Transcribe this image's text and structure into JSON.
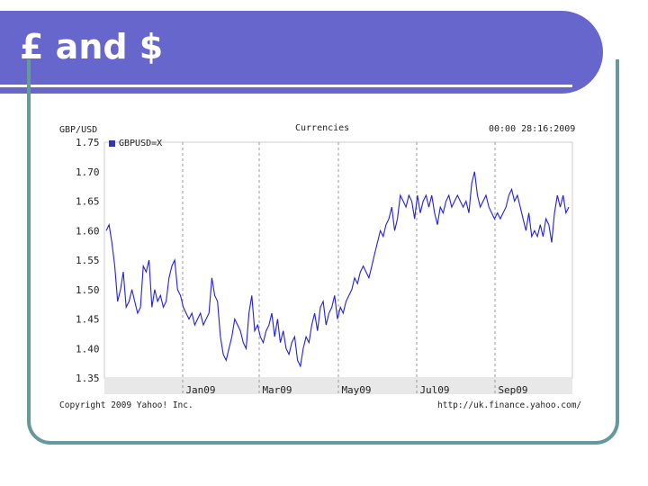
{
  "slide": {
    "title": "£ and $"
  },
  "chart_data": {
    "type": "line",
    "title": "Currencies",
    "ylabel": "GBP/USD",
    "timestamp": "00:00 28:16:2009",
    "series": [
      {
        "name": "GBPUSD=X",
        "values": [
          1.6,
          1.61,
          1.58,
          1.54,
          1.48,
          1.5,
          1.53,
          1.47,
          1.48,
          1.5,
          1.48,
          1.46,
          1.47,
          1.54,
          1.53,
          1.55,
          1.47,
          1.5,
          1.48,
          1.49,
          1.47,
          1.48,
          1.52,
          1.54,
          1.55,
          1.5,
          1.49,
          1.47,
          1.46,
          1.45,
          1.46,
          1.44,
          1.45,
          1.46,
          1.44,
          1.45,
          1.46,
          1.52,
          1.49,
          1.48,
          1.42,
          1.39,
          1.38,
          1.4,
          1.42,
          1.45,
          1.44,
          1.43,
          1.41,
          1.4,
          1.46,
          1.49,
          1.43,
          1.44,
          1.42,
          1.41,
          1.43,
          1.44,
          1.46,
          1.42,
          1.45,
          1.41,
          1.43,
          1.4,
          1.39,
          1.41,
          1.42,
          1.38,
          1.37,
          1.4,
          1.42,
          1.41,
          1.44,
          1.46,
          1.43,
          1.47,
          1.48,
          1.44,
          1.46,
          1.47,
          1.49,
          1.45,
          1.47,
          1.46,
          1.48,
          1.49,
          1.5,
          1.52,
          1.51,
          1.53,
          1.54,
          1.53,
          1.52,
          1.54,
          1.56,
          1.58,
          1.6,
          1.59,
          1.61,
          1.62,
          1.64,
          1.6,
          1.62,
          1.66,
          1.65,
          1.64,
          1.66,
          1.65,
          1.62,
          1.66,
          1.63,
          1.65,
          1.66,
          1.64,
          1.66,
          1.63,
          1.61,
          1.64,
          1.63,
          1.65,
          1.66,
          1.64,
          1.65,
          1.66,
          1.65,
          1.64,
          1.65,
          1.63,
          1.68,
          1.7,
          1.66,
          1.64,
          1.65,
          1.66,
          1.64,
          1.63,
          1.62,
          1.63,
          1.62,
          1.63,
          1.64,
          1.66,
          1.67,
          1.65,
          1.66,
          1.64,
          1.62,
          1.6,
          1.63,
          1.59,
          1.6,
          1.59,
          1.61,
          1.59,
          1.62,
          1.61,
          1.58,
          1.63,
          1.66,
          1.64,
          1.66,
          1.63,
          1.64
        ]
      }
    ],
    "xticks": [
      "Jan09",
      "Mar09",
      "May09",
      "Jul09",
      "Sep09"
    ],
    "yticks": [
      "1.75",
      "1.70",
      "1.65",
      "1.60",
      "1.55",
      "1.50",
      "1.45",
      "1.40",
      "1.35"
    ],
    "ylim": [
      1.35,
      1.75
    ],
    "grid": true,
    "legend": "top-left",
    "colors": {
      "line": "#2222cc",
      "plot_bg": "#ffffff",
      "axis_band": "#e8e8e8",
      "grid": "#999999"
    },
    "footer_left": "Copyright 2009 Yahoo! Inc.",
    "footer_right": "http://uk.finance.yahoo.com/"
  }
}
